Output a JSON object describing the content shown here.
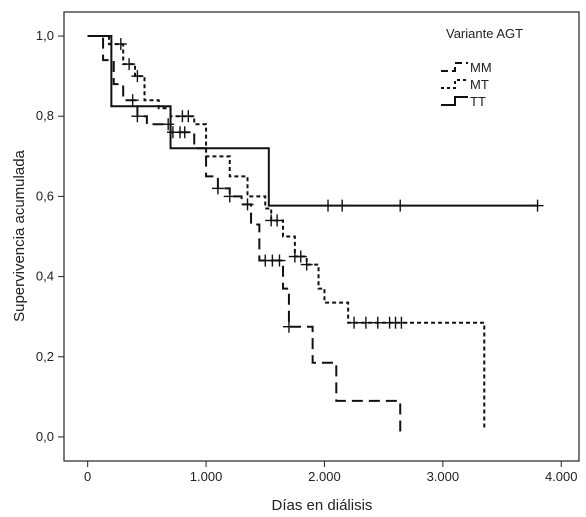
{
  "chart_data": {
    "type": "line",
    "subtype": "kaplan-meier step survival curve",
    "xlabel": "Días en diálisis",
    "ylabel": "Supervivencia acumulada",
    "xlim": [
      -200,
      4150
    ],
    "ylim": [
      -0.06,
      1.06
    ],
    "x_ticks": [
      0,
      1000,
      2000,
      3000,
      4000
    ],
    "x_tick_labels": [
      "0",
      "1.000",
      "2.000",
      "3.000",
      "4.000"
    ],
    "y_ticks": [
      0.0,
      0.2,
      0.4,
      0.6,
      0.8,
      1.0
    ],
    "y_tick_labels": [
      "0,0",
      "0,2",
      "0,4",
      "0,6",
      "0,8",
      "1,0"
    ],
    "grid": false,
    "legend": {
      "title": "Variante AGT",
      "position": "top-right",
      "entries": [
        "MM",
        "MT",
        "TT"
      ]
    },
    "series": [
      {
        "name": "MM",
        "line_style": "long-dash",
        "color": "#111111",
        "steps": [
          [
            0,
            1.0
          ],
          [
            130,
            0.94
          ],
          [
            220,
            0.88
          ],
          [
            300,
            0.84
          ],
          [
            420,
            0.8
          ],
          [
            500,
            0.78
          ],
          [
            700,
            0.76
          ],
          [
            900,
            0.72
          ],
          [
            1000,
            0.65
          ],
          [
            1100,
            0.62
          ],
          [
            1200,
            0.6
          ],
          [
            1300,
            0.58
          ],
          [
            1380,
            0.53
          ],
          [
            1450,
            0.44
          ],
          [
            1650,
            0.37
          ],
          [
            1700,
            0.37
          ],
          [
            1700,
            0.275
          ],
          [
            1900,
            0.275
          ],
          [
            1900,
            0.185
          ],
          [
            2100,
            0.185
          ],
          [
            2100,
            0.09
          ],
          [
            2640,
            0.09
          ],
          [
            2640,
            0.0
          ]
        ],
        "censored_x": [
          380,
          420,
          680,
          720,
          780,
          820,
          1100,
          1200,
          1350,
          1500,
          1560,
          1620,
          1700
        ]
      },
      {
        "name": "MT",
        "line_style": "short-dash",
        "color": "#111111",
        "steps": [
          [
            0,
            1.0
          ],
          [
            180,
            0.98
          ],
          [
            300,
            0.93
          ],
          [
            400,
            0.9
          ],
          [
            480,
            0.84
          ],
          [
            600,
            0.82
          ],
          [
            700,
            0.8
          ],
          [
            900,
            0.78
          ],
          [
            1000,
            0.7
          ],
          [
            1200,
            0.65
          ],
          [
            1350,
            0.6
          ],
          [
            1500,
            0.57
          ],
          [
            1550,
            0.54
          ],
          [
            1650,
            0.5
          ],
          [
            1750,
            0.45
          ],
          [
            1850,
            0.43
          ],
          [
            1950,
            0.37
          ],
          [
            2000,
            0.335
          ],
          [
            2200,
            0.335
          ],
          [
            2200,
            0.285
          ],
          [
            3350,
            0.285
          ],
          [
            3350,
            0.02
          ]
        ],
        "censored_x": [
          280,
          350,
          420,
          800,
          850,
          1550,
          1600,
          1750,
          1800,
          1850,
          2250,
          2350,
          2450,
          2550,
          2600,
          2650
        ]
      },
      {
        "name": "TT",
        "line_style": "solid",
        "color": "#111111",
        "steps": [
          [
            0,
            1.0
          ],
          [
            200,
            1.0
          ],
          [
            200,
            0.825
          ],
          [
            700,
            0.825
          ],
          [
            700,
            0.72
          ],
          [
            1530,
            0.72
          ],
          [
            1530,
            0.577
          ],
          [
            3800,
            0.577
          ]
        ],
        "censored_x": [
          2030,
          2150,
          2640,
          3800
        ]
      }
    ]
  }
}
